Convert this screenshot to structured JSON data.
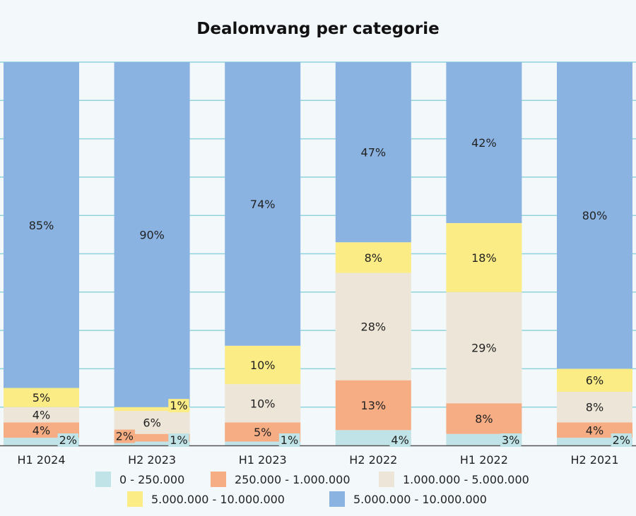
{
  "chart_data": {
    "type": "bar",
    "stacked": true,
    "title": "Dealomvang per categorie",
    "categories": [
      "H1 2024",
      "H2 2023",
      "H1 2023",
      "H2 2022",
      "H1 2022",
      "H2 2021"
    ],
    "series": [
      {
        "name": "0 - 250.000",
        "color": "#bfe3e6",
        "values": [
          2,
          1,
          1,
          4,
          3,
          2
        ]
      },
      {
        "name": "250.000 - 1.000.000",
        "color": "#f6ad84",
        "values": [
          4,
          2,
          5,
          13,
          8,
          4
        ]
      },
      {
        "name": "1.000.000 - 5.000.000",
        "color": "#ede6d8",
        "values": [
          4,
          6,
          10,
          28,
          29,
          8
        ]
      },
      {
        "name": "5.000.000 - 10.000.000",
        "color": "#fbec85",
        "values": [
          5,
          1,
          10,
          8,
          18,
          6
        ]
      },
      {
        "name": "5.000.000 - 10.000.000",
        "color": "#8ab3e2",
        "values": [
          85,
          90,
          74,
          47,
          42,
          80
        ]
      }
    ],
    "ylim": [
      0,
      100
    ],
    "grid": true,
    "gridline_color": "#8fd3dc",
    "legend_position": "bottom",
    "value_suffix": "%"
  }
}
